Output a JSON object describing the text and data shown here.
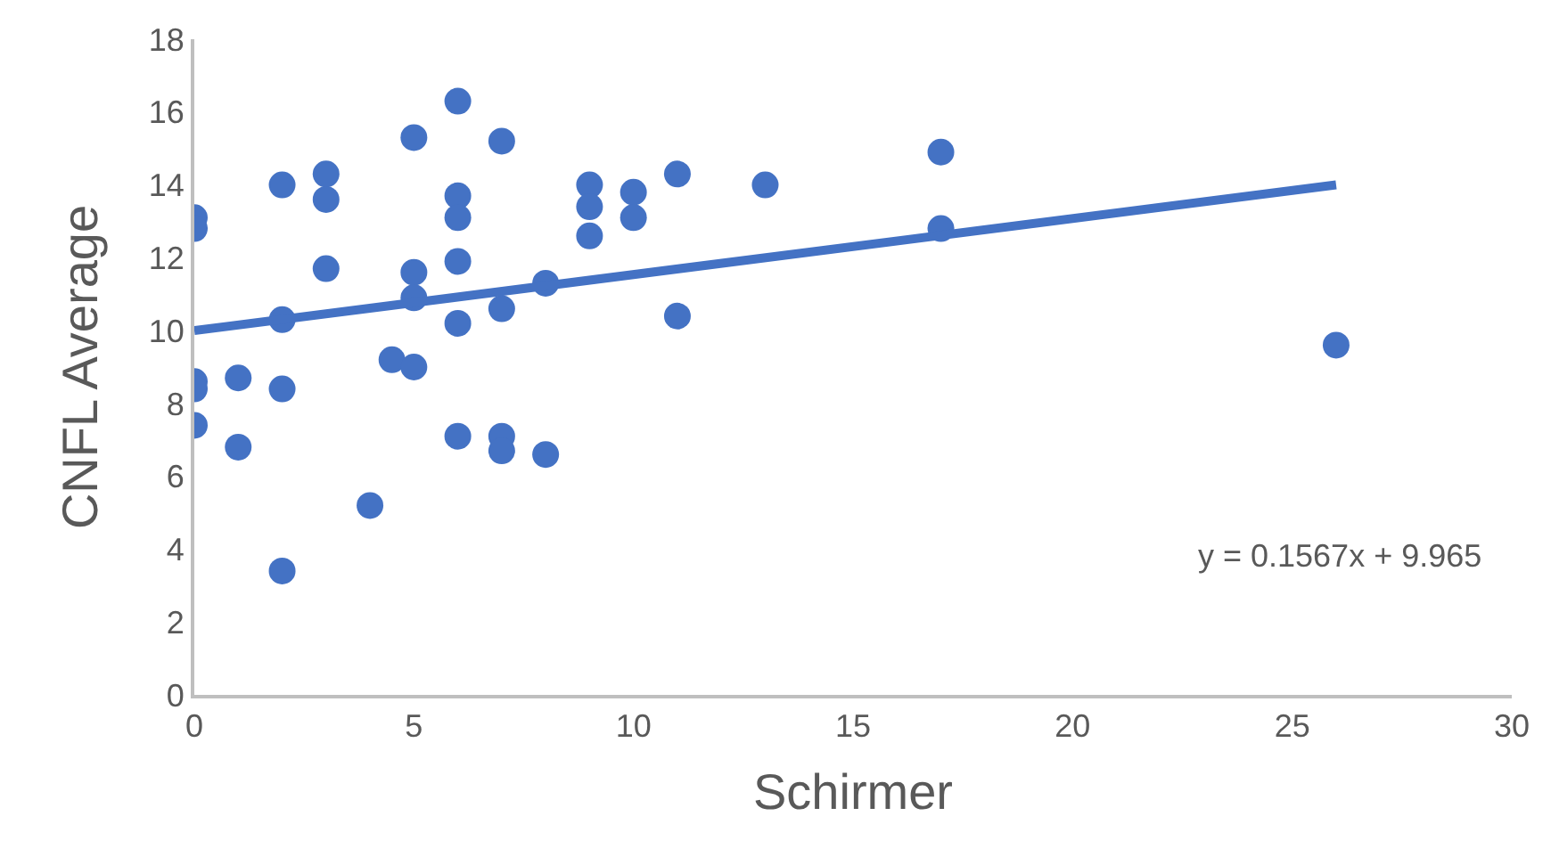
{
  "chart_data": {
    "type": "scatter",
    "xlabel": "Schirmer",
    "ylabel": "CNFL Average",
    "xlim": [
      0,
      30
    ],
    "xticks": [
      0,
      5,
      10,
      15,
      20,
      25,
      30
    ],
    "ylim": [
      0,
      18
    ],
    "yticks": [
      0,
      2,
      4,
      6,
      8,
      10,
      12,
      14,
      16,
      18
    ],
    "series": [
      {
        "color": "#4472c4",
        "marker": "circle",
        "x": [
          0,
          0,
          0,
          0,
          0,
          1,
          1,
          2,
          2,
          2,
          2,
          3,
          3,
          3,
          4,
          4.5,
          5,
          5,
          5,
          5,
          6,
          6,
          6,
          6,
          6,
          6,
          7,
          7,
          7,
          7,
          8,
          8,
          9,
          9,
          9,
          10,
          10,
          11,
          11,
          13,
          17,
          17,
          26
        ],
        "values": [
          13.1,
          12.8,
          8.6,
          8.4,
          7.4,
          8.7,
          6.8,
          14.0,
          10.3,
          8.4,
          3.4,
          14.3,
          13.6,
          11.7,
          5.2,
          9.2,
          15.3,
          11.6,
          10.9,
          9.0,
          16.3,
          13.7,
          13.1,
          11.9,
          10.2,
          7.1,
          15.2,
          10.6,
          7.1,
          6.7,
          11.3,
          6.6,
          14.0,
          13.4,
          12.6,
          13.8,
          13.1,
          14.3,
          10.4,
          14.0,
          14.9,
          12.8,
          9.6
        ]
      },
      {
        "type": "line",
        "color": "#4472c4",
        "line_style": "solid",
        "x": [
          0,
          26
        ],
        "values": [
          10.0,
          14.0
        ]
      }
    ],
    "annotations": [
      "y = 0.1567x + 9.965"
    ]
  }
}
